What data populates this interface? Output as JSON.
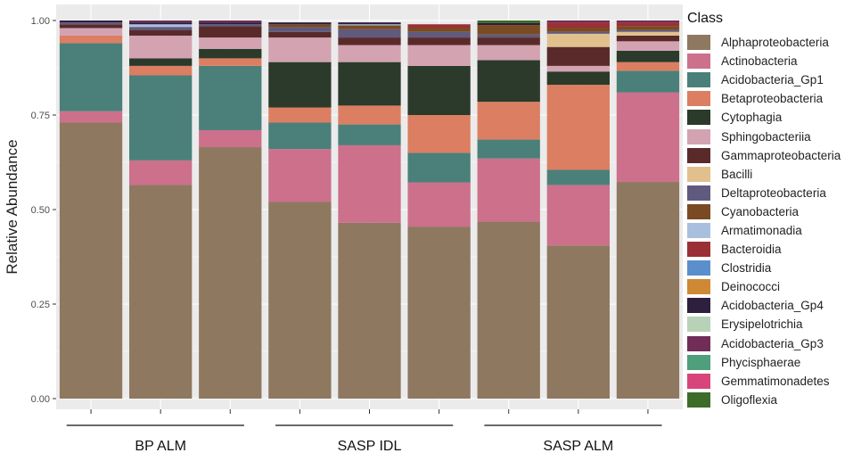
{
  "chart_data": {
    "type": "bar",
    "stacked": true,
    "ylabel": "Relative Abundance",
    "xlabel": "",
    "ylim": [
      0,
      1.0
    ],
    "y_ticks": [
      "0.00",
      "0.25",
      "0.50",
      "0.75",
      "1.00"
    ],
    "grid": true,
    "legend_title": "Class",
    "legend_position": "right",
    "groups": [
      {
        "label": "BP ALM",
        "bar_count": 3
      },
      {
        "label": "SASP IDL",
        "bar_count": 3
      },
      {
        "label": "SASP ALM",
        "bar_count": 3
      }
    ],
    "categories": [
      "BP ALM 1",
      "BP ALM 2",
      "BP ALM 3",
      "SASP IDL 1",
      "SASP IDL 2",
      "SASP IDL 3",
      "SASP ALM 1",
      "SASP ALM 2",
      "SASP ALM 3"
    ],
    "series": [
      {
        "name": "Alphaproteobacteria",
        "color": "#8E7860",
        "values": [
          0.73,
          0.565,
          0.665,
          0.52,
          0.465,
          0.455,
          0.468,
          0.405,
          0.573
        ]
      },
      {
        "name": "Actinobacteria",
        "color": "#CC708C",
        "values": [
          0.03,
          0.065,
          0.045,
          0.14,
          0.205,
          0.117,
          0.167,
          0.16,
          0.237
        ]
      },
      {
        "name": "Acidobacteria_Gp1",
        "color": "#4A8079",
        "values": [
          0.18,
          0.225,
          0.17,
          0.07,
          0.055,
          0.078,
          0.05,
          0.04,
          0.057
        ]
      },
      {
        "name": "Betaproteobacteria",
        "color": "#DC7E62",
        "values": [
          0.02,
          0.025,
          0.02,
          0.04,
          0.05,
          0.1,
          0.1,
          0.225,
          0.023
        ]
      },
      {
        "name": "Cytophagia",
        "color": "#2B3A2A",
        "values": [
          0.0,
          0.02,
          0.025,
          0.12,
          0.115,
          0.13,
          0.11,
          0.035,
          0.03
        ]
      },
      {
        "name": "Sphingobacteriia",
        "color": "#D3A3B2",
        "values": [
          0.02,
          0.06,
          0.03,
          0.065,
          0.045,
          0.055,
          0.04,
          0.015,
          0.025
        ]
      },
      {
        "name": "Gammaproteobacteria",
        "color": "#5A2A2A",
        "values": [
          0.01,
          0.015,
          0.03,
          0.015,
          0.02,
          0.02,
          0.02,
          0.05,
          0.015
        ]
      },
      {
        "name": "Bacilli",
        "color": "#E2C08E",
        "values": [
          0.0,
          0.0,
          0.0,
          0.0,
          0.0,
          0.0,
          0.0,
          0.035,
          0.01
        ]
      },
      {
        "name": "Deltaproteobacteria",
        "color": "#5F5A7E",
        "values": [
          0.005,
          0.008,
          0.005,
          0.012,
          0.022,
          0.015,
          0.008,
          0.005,
          0.005
        ]
      },
      {
        "name": "Cyanobacteria",
        "color": "#7A4A22",
        "values": [
          0.0,
          0.0,
          0.0,
          0.008,
          0.01,
          0.01,
          0.025,
          0.01,
          0.01
        ]
      },
      {
        "name": "Armatimonadia",
        "color": "#A9BFDE",
        "values": [
          0.0,
          0.007,
          0.0,
          0.0,
          0.003,
          0.0,
          0.0,
          0.0,
          0.0
        ]
      },
      {
        "name": "Bacteroidia",
        "color": "#9A3036",
        "values": [
          0.0,
          0.0,
          0.0,
          0.0,
          0.0,
          0.01,
          0.0,
          0.015,
          0.01
        ]
      },
      {
        "name": "Clostridia",
        "color": "#5B8FCB",
        "values": [
          0.0,
          0.0,
          0.0,
          0.0,
          0.0,
          0.0,
          0.0,
          0.0,
          0.0
        ]
      },
      {
        "name": "Deinococci",
        "color": "#CF8834",
        "values": [
          0.0,
          0.0,
          0.0,
          0.0,
          0.0,
          0.0,
          0.0,
          0.0,
          0.0
        ]
      },
      {
        "name": "Acidobacteria_Gp4",
        "color": "#2E1F3E",
        "values": [
          0.005,
          0.005,
          0.005,
          0.005,
          0.005,
          0.0,
          0.005,
          0.0,
          0.0
        ]
      },
      {
        "name": "Erysipelotrichia",
        "color": "#B8D2B8",
        "values": [
          0.0,
          0.0,
          0.0,
          0.0,
          0.0,
          0.0,
          0.0,
          0.0,
          0.0
        ]
      },
      {
        "name": "Acidobacteria_Gp3",
        "color": "#6F2D57",
        "values": [
          0.0,
          0.005,
          0.005,
          0.0,
          0.0,
          0.0,
          0.0,
          0.005,
          0.005
        ]
      },
      {
        "name": "Phycisphaerae",
        "color": "#4F9E7C",
        "values": [
          0.0,
          0.0,
          0.0,
          0.0,
          0.0,
          0.0,
          0.0,
          0.0,
          0.0
        ]
      },
      {
        "name": "Gemmatimonadetes",
        "color": "#D8457A",
        "values": [
          0.0,
          0.0,
          0.0,
          0.0,
          0.0,
          0.0,
          0.0,
          0.0,
          0.0
        ]
      },
      {
        "name": "Oligoflexia",
        "color": "#3D6B2A",
        "values": [
          0.0,
          0.0,
          0.0,
          0.0,
          0.0,
          0.0,
          0.007,
          0.0,
          0.0
        ]
      }
    ]
  }
}
